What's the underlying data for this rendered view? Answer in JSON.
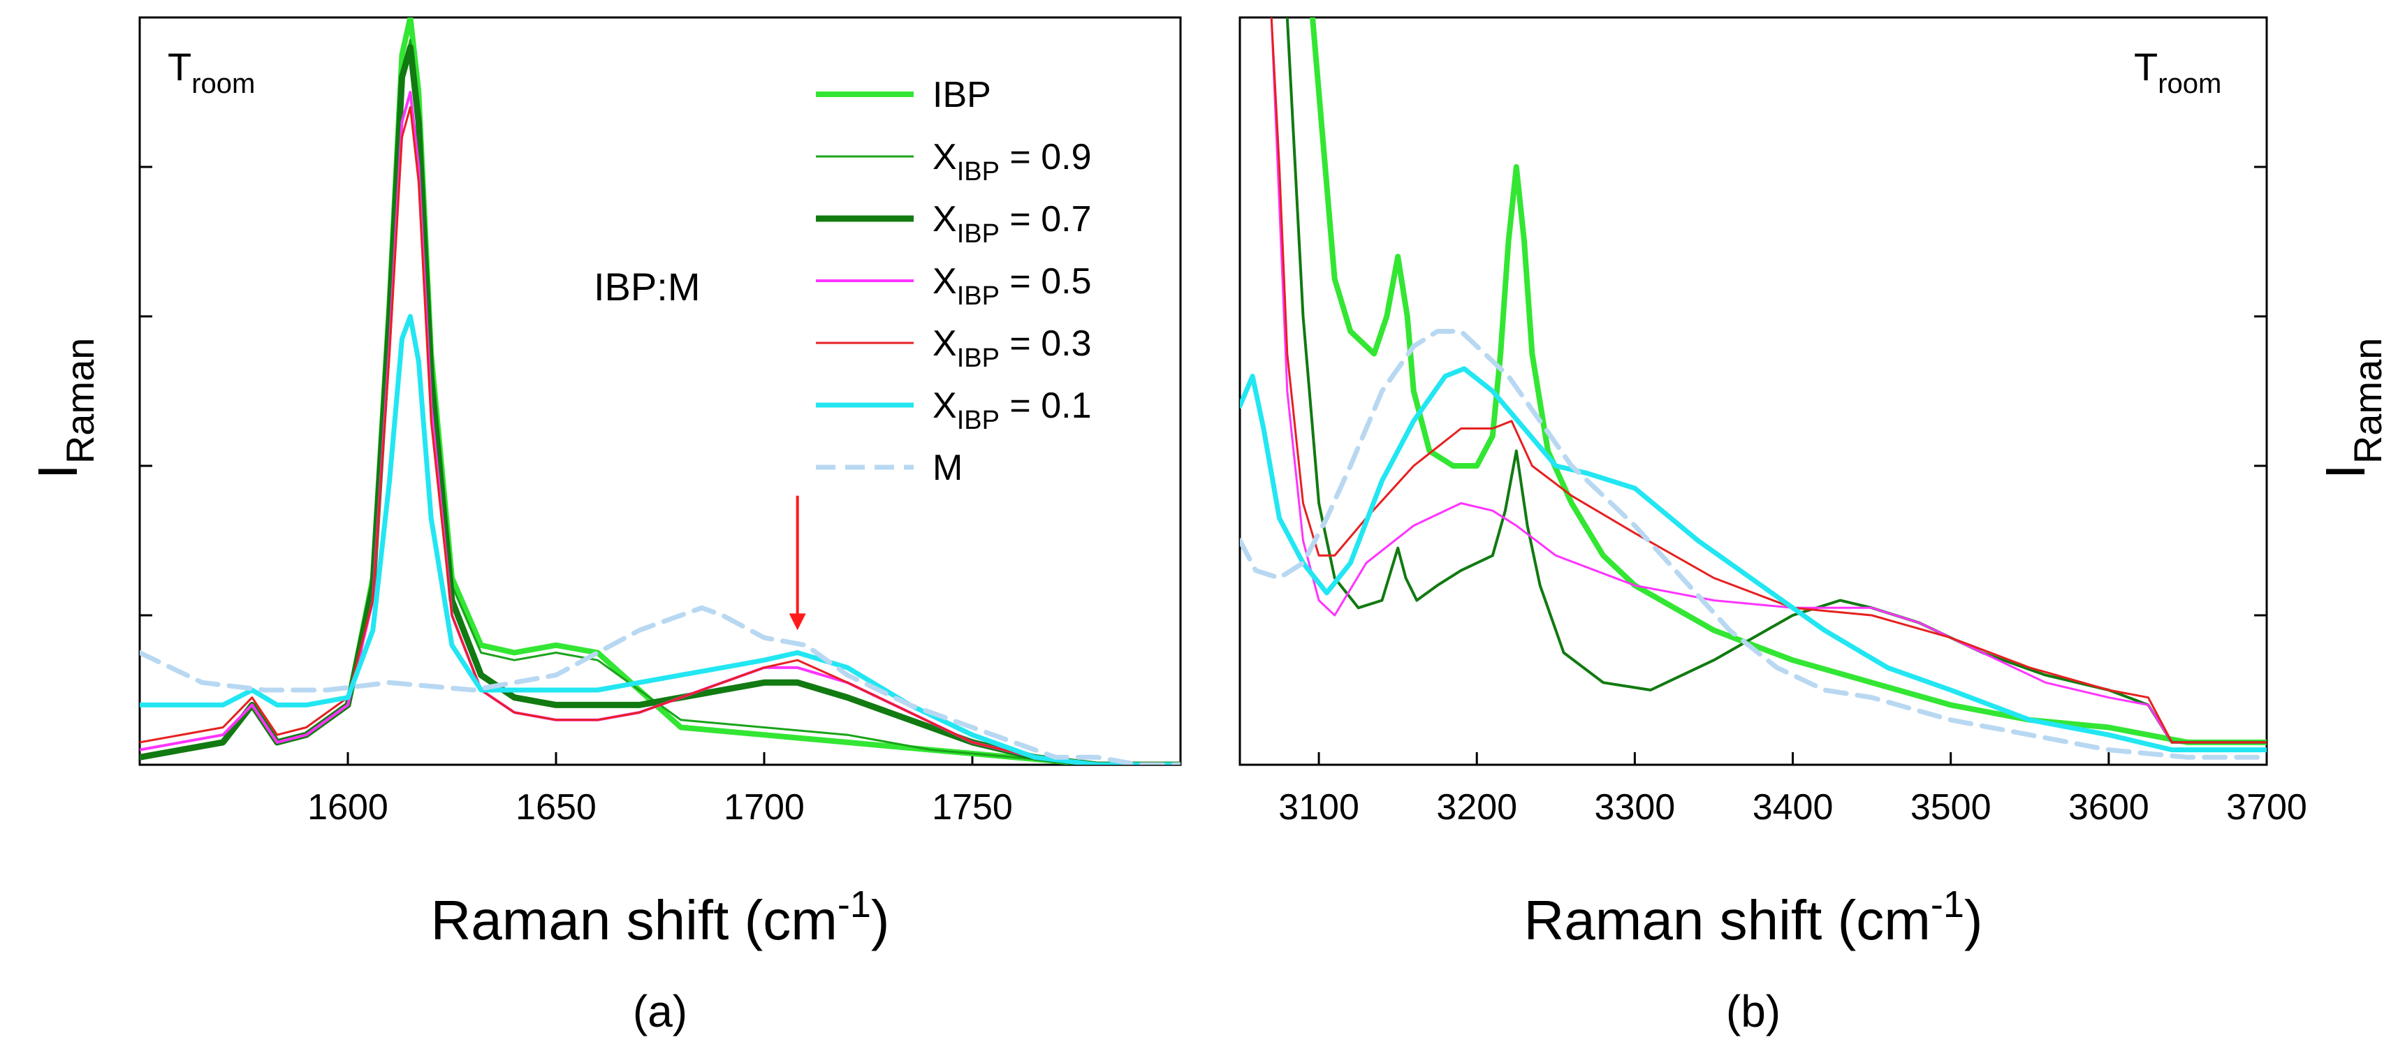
{
  "chart_data": [
    {
      "type": "line",
      "panel_label": "(a)",
      "corner_text": {
        "main": "T",
        "sub": "room"
      },
      "annotation": "IBP:M",
      "xlabel": "Raman shift (cm",
      "xlabel_sup": "-1",
      "xlabel_close": ")",
      "ylabel": "I",
      "ylabel_sub": "Raman",
      "xlim": [
        1550,
        1800
      ],
      "ylim": [
        0,
        100
      ],
      "xticks": [
        1600,
        1650,
        1700,
        1750
      ],
      "arrow_at": {
        "x": 1708,
        "y_from": 36,
        "y_to": 18
      },
      "legend": [
        {
          "main": "IBP",
          "sub": "",
          "suffix": ""
        },
        {
          "main": "X",
          "sub": "IBP",
          "suffix": " = 0.9"
        },
        {
          "main": "X",
          "sub": "IBP",
          "suffix": " = 0.7"
        },
        {
          "main": "X",
          "sub": "IBP",
          "suffix": " = 0.5"
        },
        {
          "main": "X",
          "sub": "IBP",
          "suffix": " = 0.3"
        },
        {
          "main": "X",
          "sub": "IBP",
          "suffix": " = 0.1"
        },
        {
          "main": "M",
          "sub": "",
          "suffix": ""
        }
      ],
      "series": [
        {
          "name": "IBP",
          "color": "#33e633",
          "width": 8,
          "dash": false,
          "x": [
            1550,
            1570,
            1577,
            1583,
            1590,
            1600,
            1606,
            1610,
            1613,
            1615,
            1617,
            1620,
            1625,
            1632,
            1640,
            1650,
            1660,
            1670,
            1680,
            1700,
            1720,
            1740,
            1760,
            1780,
            1800
          ],
          "y": [
            1,
            3,
            8,
            3,
            4,
            8,
            25,
            62,
            95,
            100,
            90,
            55,
            25,
            16,
            15,
            16,
            15,
            10,
            5,
            4,
            3,
            2,
            1,
            0,
            0
          ]
        },
        {
          "name": "X = 0.9",
          "color": "#1aa31a",
          "width": 3,
          "dash": false,
          "x": [
            1550,
            1570,
            1577,
            1583,
            1590,
            1600,
            1606,
            1610,
            1613,
            1615,
            1617,
            1620,
            1625,
            1632,
            1640,
            1650,
            1660,
            1670,
            1680,
            1700,
            1720,
            1740,
            1760,
            1780,
            1800
          ],
          "y": [
            1,
            3,
            8,
            3,
            4,
            8,
            24,
            60,
            92,
            97,
            88,
            53,
            24,
            15,
            14,
            15,
            14,
            10,
            6,
            5,
            4,
            2,
            1,
            0,
            0
          ]
        },
        {
          "name": "X = 0.7",
          "color": "#117a11",
          "width": 9,
          "dash": false,
          "x": [
            1550,
            1570,
            1577,
            1583,
            1590,
            1600,
            1606,
            1610,
            1613,
            1615,
            1617,
            1620,
            1625,
            1632,
            1640,
            1650,
            1660,
            1670,
            1680,
            1690,
            1700,
            1708,
            1720,
            1735,
            1750,
            1765,
            1780,
            1800
          ],
          "y": [
            1,
            3,
            8,
            3,
            4,
            8,
            24,
            60,
            92,
            96,
            86,
            52,
            22,
            12,
            9,
            8,
            8,
            8,
            9,
            10,
            11,
            11,
            9,
            6,
            3,
            1,
            0,
            0
          ]
        },
        {
          "name": "X = 0.5",
          "color": "#ff33ff",
          "width": 4,
          "dash": false,
          "x": [
            1550,
            1570,
            1577,
            1583,
            1590,
            1600,
            1606,
            1610,
            1613,
            1615,
            1617,
            1620,
            1625,
            1632,
            1640,
            1650,
            1660,
            1670,
            1680,
            1690,
            1700,
            1708,
            1720,
            1735,
            1750,
            1765,
            1780,
            1800
          ],
          "y": [
            2,
            4,
            8,
            3,
            4,
            8,
            22,
            56,
            86,
            90,
            80,
            48,
            20,
            10,
            7,
            6,
            6,
            7,
            9,
            11,
            13,
            13,
            11,
            7,
            3,
            1,
            0,
            0
          ]
        },
        {
          "name": "X = 0.3",
          "color": "#e62020",
          "width": 3,
          "dash": false,
          "x": [
            1550,
            1570,
            1577,
            1583,
            1590,
            1600,
            1606,
            1610,
            1613,
            1615,
            1617,
            1620,
            1625,
            1632,
            1640,
            1650,
            1660,
            1670,
            1680,
            1690,
            1700,
            1708,
            1720,
            1735,
            1750,
            1765,
            1780,
            1800
          ],
          "y": [
            3,
            5,
            9,
            4,
            5,
            9,
            22,
            55,
            84,
            88,
            78,
            46,
            20,
            10,
            7,
            6,
            6,
            7,
            9,
            11,
            13,
            14,
            11,
            7,
            3,
            1,
            0,
            0
          ]
        },
        {
          "name": "X = 0.1",
          "color": "#22e6f2",
          "width": 7,
          "dash": false,
          "x": [
            1550,
            1570,
            1577,
            1583,
            1590,
            1600,
            1606,
            1610,
            1613,
            1615,
            1617,
            1620,
            1625,
            1632,
            1640,
            1650,
            1660,
            1670,
            1680,
            1690,
            1700,
            1708,
            1720,
            1735,
            1750,
            1765,
            1780,
            1800
          ],
          "y": [
            8,
            8,
            10,
            8,
            8,
            9,
            18,
            38,
            57,
            60,
            54,
            33,
            16,
            10,
            10,
            10,
            10,
            11,
            12,
            13,
            14,
            15,
            13,
            8,
            4,
            1,
            0,
            0
          ]
        },
        {
          "name": "M",
          "color": "#b8d8f2",
          "width": 7,
          "dash": true,
          "x": [
            1550,
            1565,
            1580,
            1595,
            1610,
            1630,
            1650,
            1670,
            1680,
            1685,
            1690,
            1700,
            1710,
            1720,
            1735,
            1750,
            1760,
            1770,
            1780,
            1790,
            1800
          ],
          "y": [
            15,
            11,
            10,
            10,
            11,
            10,
            12,
            18,
            20,
            21,
            20,
            17,
            16,
            12,
            8,
            5,
            3,
            1,
            1,
            0,
            0
          ]
        }
      ]
    },
    {
      "type": "line",
      "panel_label": "(b)",
      "corner_text": {
        "main": "T",
        "sub": "room"
      },
      "xlabel": "Raman shift (cm",
      "xlabel_sup": "-1",
      "xlabel_close": ")",
      "ylabel": "I",
      "ylabel_sub": "Raman",
      "xlim": [
        3050,
        3700
      ],
      "ylim": [
        0,
        100
      ],
      "xticks": [
        3100,
        3200,
        3300,
        3400,
        3500,
        3600,
        3700
      ],
      "series": [
        {
          "name": "IBP",
          "color": "#33e633",
          "width": 8,
          "dash": false,
          "x": [
            3096,
            3100,
            3110,
            3120,
            3135,
            3143,
            3150,
            3156,
            3160,
            3170,
            3185,
            3200,
            3210,
            3215,
            3220,
            3225,
            3230,
            3235,
            3245,
            3260,
            3280,
            3300,
            3350,
            3400,
            3450,
            3500,
            3550,
            3600,
            3650,
            3700
          ],
          "y": [
            100,
            90,
            65,
            58,
            55,
            60,
            68,
            60,
            50,
            42,
            40,
            40,
            44,
            55,
            70,
            80,
            70,
            55,
            42,
            35,
            28,
            24,
            18,
            14,
            11,
            8,
            6,
            5,
            3,
            3
          ]
        },
        {
          "name": "X = 0.7",
          "color": "#117a11",
          "width": 4,
          "dash": false,
          "x": [
            3080,
            3085,
            3090,
            3100,
            3110,
            3125,
            3140,
            3150,
            3155,
            3162,
            3175,
            3190,
            3210,
            3218,
            3225,
            3232,
            3240,
            3255,
            3280,
            3310,
            3350,
            3400,
            3430,
            3450,
            3480,
            3520,
            3560,
            3600,
            3625,
            3640,
            3700
          ],
          "y": [
            100,
            80,
            60,
            35,
            25,
            21,
            22,
            29,
            25,
            22,
            24,
            26,
            28,
            34,
            42,
            32,
            24,
            15,
            11,
            10,
            14,
            20,
            22,
            21,
            19,
            15,
            12,
            10,
            8,
            3,
            3
          ]
        },
        {
          "name": "X = 0.5",
          "color": "#ff33ff",
          "width": 3,
          "dash": false,
          "x": [
            3070,
            3075,
            3080,
            3090,
            3100,
            3110,
            3130,
            3160,
            3190,
            3210,
            3225,
            3250,
            3300,
            3350,
            3400,
            3450,
            3480,
            3520,
            3560,
            3600,
            3625,
            3640,
            3700
          ],
          "y": [
            100,
            75,
            50,
            30,
            22,
            20,
            27,
            32,
            35,
            34,
            32,
            28,
            24,
            22,
            21,
            21,
            19,
            15,
            11,
            9,
            8,
            3,
            3
          ]
        },
        {
          "name": "X = 0.3",
          "color": "#e62020",
          "width": 3,
          "dash": false,
          "x": [
            3070,
            3075,
            3080,
            3090,
            3100,
            3110,
            3130,
            3160,
            3190,
            3210,
            3222,
            3235,
            3260,
            3300,
            3350,
            3400,
            3450,
            3500,
            3550,
            3600,
            3625,
            3640,
            3700
          ],
          "y": [
            100,
            80,
            55,
            35,
            28,
            28,
            33,
            40,
            45,
            45,
            46,
            40,
            36,
            31,
            25,
            21,
            20,
            17,
            13,
            10,
            9,
            3,
            3
          ]
        },
        {
          "name": "X = 0.1",
          "color": "#22e6f2",
          "width": 7,
          "dash": false,
          "x": [
            3050,
            3058,
            3065,
            3075,
            3090,
            3105,
            3120,
            3140,
            3160,
            3180,
            3192,
            3210,
            3230,
            3250,
            3270,
            3300,
            3340,
            3380,
            3420,
            3460,
            3500,
            3550,
            3600,
            3640,
            3700
          ],
          "y": [
            48,
            52,
            45,
            33,
            27,
            23,
            27,
            38,
            46,
            52,
            53,
            50,
            45,
            40,
            39,
            37,
            30,
            24,
            18,
            13,
            10,
            6,
            4,
            2,
            2
          ]
        },
        {
          "name": "M",
          "color": "#b8d8f2",
          "width": 7,
          "dash": true,
          "x": [
            3050,
            3060,
            3075,
            3090,
            3105,
            3120,
            3140,
            3160,
            3175,
            3185,
            3190,
            3200,
            3220,
            3240,
            3260,
            3280,
            3300,
            3330,
            3360,
            3390,
            3420,
            3450,
            3500,
            3550,
            3600,
            3650,
            3700
          ],
          "y": [
            30,
            26,
            25,
            27,
            33,
            40,
            50,
            56,
            58,
            58,
            58,
            56,
            52,
            46,
            40,
            36,
            32,
            25,
            18,
            13,
            10,
            9,
            6,
            4,
            2,
            1,
            1
          ]
        }
      ]
    }
  ]
}
